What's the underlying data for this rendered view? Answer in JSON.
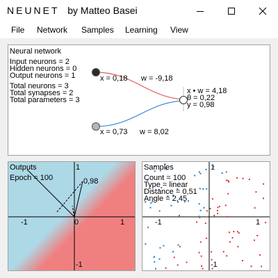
{
  "window": {
    "brand": "NEUNET",
    "byline": "by Matteo Basei"
  },
  "menu": {
    "file": "File",
    "network": "Network",
    "samples": "Samples",
    "learning": "Learning",
    "view": "View"
  },
  "network_panel": {
    "title": "Neural network",
    "input_neurons": "Input neurons = 2",
    "hidden_neurons": "Hidden neurons = 0",
    "output_neurons": "Output neurons = 1",
    "total_neurons": "Total neurons = 3",
    "total_synapses": "Total synapses = 2",
    "total_parameters": "Total parameters = 3",
    "input1_x": "x = 0,18",
    "input2_x": "x = 0,73",
    "w1": "w = -9,18",
    "w2": "w = 8,02",
    "out_xw": "x • w = 4,18",
    "out_theta": "θ = 0,22",
    "out_y": "y = 0,98",
    "colors": {
      "negative_weight": "#e06060",
      "positive_weight": "#3b8fd8"
    }
  },
  "outputs_panel": {
    "title": "Outputs",
    "epoch": "Epoch = 100",
    "tick_x_neg": "-1",
    "tick_x_zero": "0",
    "tick_x_pos": "1",
    "tick_y_pos": "1",
    "tick_y_neg": "-1",
    "value_label": "0,98",
    "colors": {
      "class_a": "#add8e6",
      "class_b": "#f08080"
    }
  },
  "samples_panel": {
    "title": "Samples",
    "count": "Count = 100",
    "type": "Type = linear",
    "distance": "Distance = 0,51",
    "angle": "Angle = 2,45",
    "tick_x_neg": "-1",
    "tick_x_pos": "1",
    "tick_y_pos": "1",
    "tick_y_neg": "-1",
    "colors": {
      "class_a": "#1e7fd0",
      "class_b": "#e03030"
    }
  }
}
